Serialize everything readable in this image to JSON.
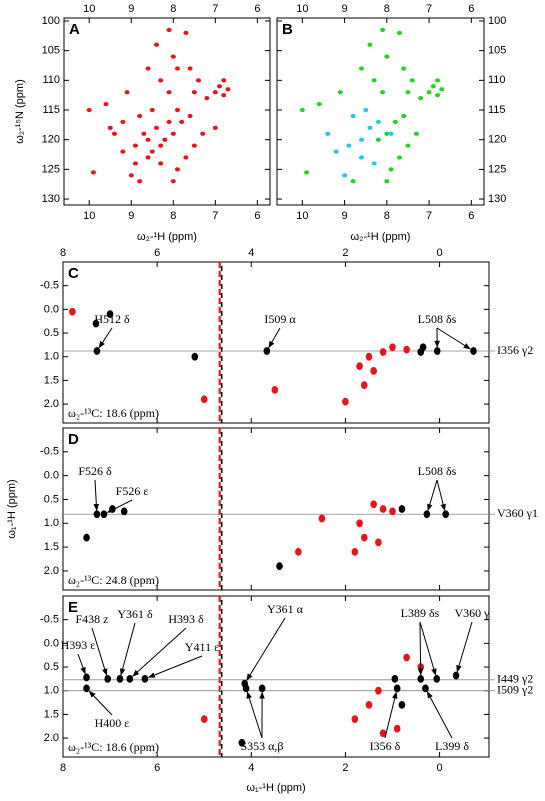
{
  "chart_data": [
    {
      "type": "scatter",
      "label": "A",
      "xlim": [
        10.6,
        5.7
      ],
      "ylim": [
        99.5,
        131
      ],
      "xticks": [
        10,
        9,
        8,
        7,
        6
      ],
      "yticks": [
        100,
        105,
        110,
        115,
        120,
        125,
        130
      ],
      "xlabel": "ω₂-¹H (ppm)",
      "ylabel": "ω₂-¹⁵N (ppm)",
      "series": [
        {
          "color": "#e8141b",
          "x": [
            9.9,
            9.0,
            8.9,
            8.6,
            8.5,
            8.3,
            8.2,
            8.0,
            8.4,
            8.1,
            7.8,
            7.6,
            7.9,
            8.5,
            8.8,
            9.2,
            9.4,
            8.7,
            8.6,
            7.5,
            7.3,
            7.0,
            7.2,
            7.0,
            6.9,
            6.8,
            7.5,
            7.4,
            8.1,
            8.3,
            8.6,
            8.0,
            8.4,
            7.7,
            8.1,
            9.1,
            9.6,
            10.0,
            8.8,
            7.9,
            8.0,
            7.7,
            8.9,
            9.2,
            7.6,
            7.9,
            6.8,
            6.7,
            8.3,
            9.5
          ],
          "values": [
            125.5,
            126,
            124,
            123,
            122,
            121,
            120,
            119,
            118,
            117,
            117,
            116,
            115,
            115,
            116,
            117,
            119,
            119,
            120,
            121,
            119,
            118,
            113,
            112,
            111,
            110,
            112,
            110,
            112,
            110,
            108,
            106,
            104,
            102,
            101.5,
            112,
            114,
            115,
            127,
            125,
            127,
            123,
            121,
            122,
            108,
            108,
            112.5,
            111.5,
            124,
            118
          ]
        }
      ]
    },
    {
      "type": "scatter",
      "label": "B",
      "xlim": [
        10.6,
        5.7
      ],
      "ylim": [
        99.5,
        131
      ],
      "xticks": [
        10,
        9,
        8,
        7,
        6
      ],
      "yticks": [
        100,
        105,
        110,
        115,
        120,
        125,
        130
      ],
      "xlabel": "ω₂-¹H (ppm)",
      "series": [
        {
          "color": "#22d422",
          "x": [
            7.0,
            6.9,
            6.8,
            7.2,
            7.5,
            7.4,
            6.8,
            6.7,
            7.6,
            7.8,
            8.0,
            7.3,
            7.5,
            8.1,
            8.3,
            8.6,
            8.0,
            8.4,
            7.7,
            8.1,
            9.9,
            7.9,
            8.0,
            7.7,
            8.2,
            9.1,
            10.0,
            7.6,
            8.8,
            9.6
          ],
          "values": [
            112,
            111,
            110,
            113,
            112,
            110,
            112.5,
            111.5,
            116,
            117,
            119,
            119,
            121,
            112,
            110,
            108,
            106,
            104,
            102,
            101.5,
            125.5,
            125,
            127,
            123,
            120,
            112,
            115,
            108,
            127,
            114
          ]
        },
        {
          "color": "#22c8e8",
          "x": [
            8.6,
            8.4,
            8.2,
            8.9,
            9.2,
            8.6,
            8.3,
            9.0,
            8.5,
            8.8,
            9.4,
            7.9
          ],
          "values": [
            120,
            118,
            117,
            121,
            122,
            123,
            124,
            126,
            115,
            116,
            119,
            119
          ]
        }
      ]
    },
    {
      "type": "scatter",
      "label": "C",
      "xlim": [
        8,
        -1.05
      ],
      "ylim": [
        -1.0,
        2.4
      ],
      "xticks": [
        8,
        6,
        4,
        2,
        0
      ],
      "yticks": [
        -0.5,
        {
          "value": 0,
          "label": "0.0"
        },
        0.5,
        {
          "value": 1,
          "label": "1.0"
        },
        1.5,
        {
          "value": 2,
          "label": "2.0"
        }
      ],
      "note": "ω₂-¹³C: 18.6 (ppm)",
      "xlines": [
        4.65
      ],
      "hlines": [
        {
          "value": 0.88,
          "label": "I356 γ2"
        }
      ],
      "annotations": [
        {
          "text": "H512 δ",
          "targets": [
            [
              7.28,
              0.88
            ]
          ]
        },
        {
          "text": "I509 α",
          "targets": [
            [
              3.67,
              0.88
            ]
          ]
        },
        {
          "text": "L508 δs",
          "targets": [
            [
              0.05,
              0.88
            ],
            [
              -0.72,
              0.88
            ]
          ]
        }
      ],
      "series": [
        {
          "color": "#000000",
          "x": [
            7.28,
            3.67,
            0.05,
            -0.72,
            0.35,
            0.4,
            7.0,
            7.3,
            5.2
          ],
          "values": [
            0.88,
            0.88,
            0.88,
            0.88,
            0.8,
            0.9,
            0.1,
            0.3,
            1.0
          ]
        },
        {
          "color": "#e8141b",
          "x": [
            1.0,
            1.2,
            1.5,
            1.4,
            1.7,
            1.6,
            2.0,
            0.7,
            7.8,
            5.0,
            3.5
          ],
          "values": [
            0.8,
            0.9,
            1.0,
            1.3,
            1.2,
            1.6,
            1.95,
            0.85,
            0.05,
            1.9,
            1.7
          ]
        }
      ]
    },
    {
      "type": "scatter",
      "label": "D",
      "xlim": [
        8,
        -1.05
      ],
      "ylim": [
        -1.0,
        2.4
      ],
      "xticks": [
        8,
        6,
        4,
        2,
        0
      ],
      "yticks": [
        -0.5,
        {
          "value": 0,
          "label": "0.0"
        },
        0.5,
        {
          "value": 1,
          "label": "1.0"
        },
        1.5,
        {
          "value": 2,
          "label": "2.0"
        }
      ],
      "ylabel": "ω₁-¹H (ppm)",
      "note": "ω₂-¹³C: 24.8 (ppm)",
      "xlines": [
        4.65
      ],
      "hlines": [
        {
          "value": 0.81,
          "label": "V360 γ1"
        }
      ],
      "annotations": [
        {
          "text": "F526 δ",
          "targets": [
            [
              7.28,
              0.81
            ]
          ]
        },
        {
          "text": "F526 ε",
          "targets": [
            [
              7.13,
              0.81
            ]
          ]
        },
        {
          "text": "L508 δs",
          "targets": [
            [
              0.27,
              0.81
            ],
            [
              -0.13,
              0.81
            ]
          ]
        }
      ],
      "series": [
        {
          "color": "#000000",
          "x": [
            7.28,
            7.13,
            6.95,
            6.7,
            0.27,
            -0.13,
            0.8,
            3.4,
            7.5
          ],
          "values": [
            0.81,
            0.81,
            0.7,
            0.75,
            0.81,
            0.81,
            0.7,
            1.9,
            1.3
          ]
        },
        {
          "color": "#e8141b",
          "x": [
            1.4,
            1.2,
            1.0,
            1.7,
            1.6,
            1.3,
            1.8,
            2.5,
            3.0
          ],
          "values": [
            0.6,
            0.7,
            0.75,
            1.0,
            1.3,
            1.4,
            1.6,
            0.9,
            1.6
          ]
        }
      ]
    },
    {
      "type": "scatter",
      "label": "E",
      "xlim": [
        8,
        -1.05
      ],
      "ylim": [
        -1.0,
        2.4
      ],
      "xticks": [
        8,
        6,
        4,
        2,
        0
      ],
      "yticks": [
        -0.5,
        {
          "value": 0,
          "label": "0.0"
        },
        0.5,
        {
          "value": 1,
          "label": "1.0"
        },
        1.5,
        {
          "value": 2,
          "label": "2.0"
        }
      ],
      "xlabel": "ω₁-¹H (ppm)",
      "note": "ω₂-¹³C: 18.6 (ppm)",
      "xlines": [
        4.65
      ],
      "hlines": [
        {
          "value": 0.77,
          "label": "I449 γ2"
        },
        {
          "value": 1.0,
          "label": "I509 γ2"
        }
      ],
      "annotations": [
        {
          "text": "H393 ε",
          "targets": [
            [
              7.5,
              0.72
            ]
          ]
        },
        {
          "text": "F438 z",
          "targets": [
            [
              7.05,
              0.75
            ]
          ]
        },
        {
          "text": "Y361 δ",
          "targets": [
            [
              6.79,
              0.75
            ]
          ]
        },
        {
          "text": "H393 δ",
          "targets": [
            [
              6.58,
              0.75
            ]
          ]
        },
        {
          "text": "Y411 ε",
          "targets": [
            [
              6.26,
              0.75
            ]
          ]
        },
        {
          "text": "H400 ε",
          "targets": [
            [
              7.5,
              0.95
            ]
          ]
        },
        {
          "text": "Y361 α",
          "targets": [
            [
              4.14,
              0.85
            ]
          ]
        },
        {
          "text": "S353 α,β",
          "targets": [
            [
              4.11,
              0.95
            ],
            [
              3.77,
              0.95
            ]
          ]
        },
        {
          "text": "L389 δs",
          "targets": [
            [
              0.4,
              0.75
            ],
            [
              0.06,
              0.75
            ]
          ]
        },
        {
          "text": "V360 γ",
          "targets": [
            [
              -0.35,
              0.68
            ]
          ]
        },
        {
          "text": "I356 δ",
          "targets": [
            [
              0.9,
              0.95
            ]
          ]
        },
        {
          "text": "L399 δ",
          "targets": [
            [
              0.3,
              0.95
            ]
          ]
        }
      ],
      "series": [
        {
          "color": "#000000",
          "x": [
            7.5,
            7.5,
            7.05,
            6.79,
            6.58,
            6.26,
            4.14,
            4.11,
            3.77,
            0.95,
            0.9,
            0.4,
            0.06,
            0.3,
            -0.35,
            4.2,
            0.8
          ],
          "values": [
            0.72,
            0.95,
            0.75,
            0.75,
            0.75,
            0.75,
            0.85,
            0.95,
            0.95,
            0.75,
            0.95,
            0.75,
            0.75,
            0.95,
            0.68,
            2.1,
            1.3
          ]
        },
        {
          "color": "#e8141b",
          "x": [
            0.7,
            0.4,
            1.3,
            1.5,
            1.8,
            0.9,
            1.2,
            5.0
          ],
          "values": [
            0.3,
            0.5,
            1.0,
            1.3,
            1.6,
            1.8,
            1.9,
            1.6
          ]
        }
      ]
    }
  ]
}
